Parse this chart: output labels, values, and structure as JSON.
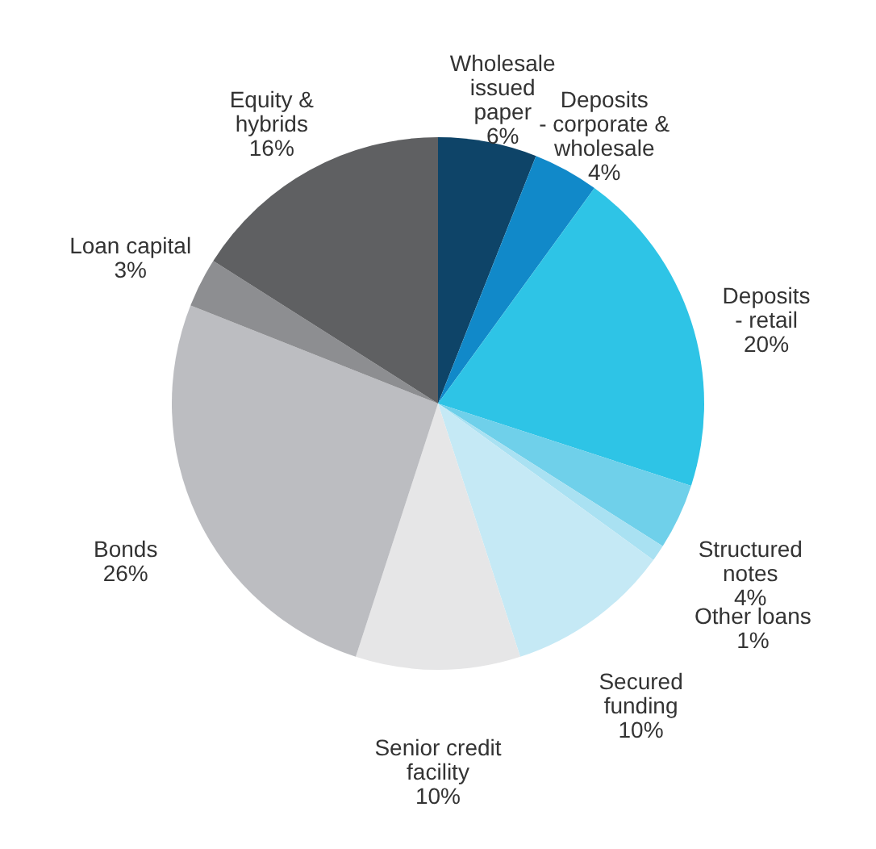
{
  "chart_data": {
    "type": "pie",
    "categories": [
      "Wholesale\nissued\npaper",
      "Deposits\n- corporate &\nwholesale",
      "Deposits\n- retail",
      "Structured\nnotes",
      "Other loans",
      "Secured\nfunding",
      "Senior credit\nfacility",
      "Bonds",
      "Loan capital",
      "Equity &\nhybrids"
    ],
    "values": [
      6,
      4,
      20,
      4,
      1,
      10,
      10,
      26,
      3,
      16
    ],
    "value_labels": [
      "6%",
      "4%",
      "20%",
      "4%",
      "1%",
      "10%",
      "10%",
      "26%",
      "3%",
      "16%"
    ],
    "colors": [
      "#0e4468",
      "#1189c9",
      "#2ec4e6",
      "#6fd0ea",
      "#a9e1f2",
      "#c5e9f5",
      "#e6e6e7",
      "#bcbdc1",
      "#8d8e91",
      "#5f6062"
    ]
  }
}
